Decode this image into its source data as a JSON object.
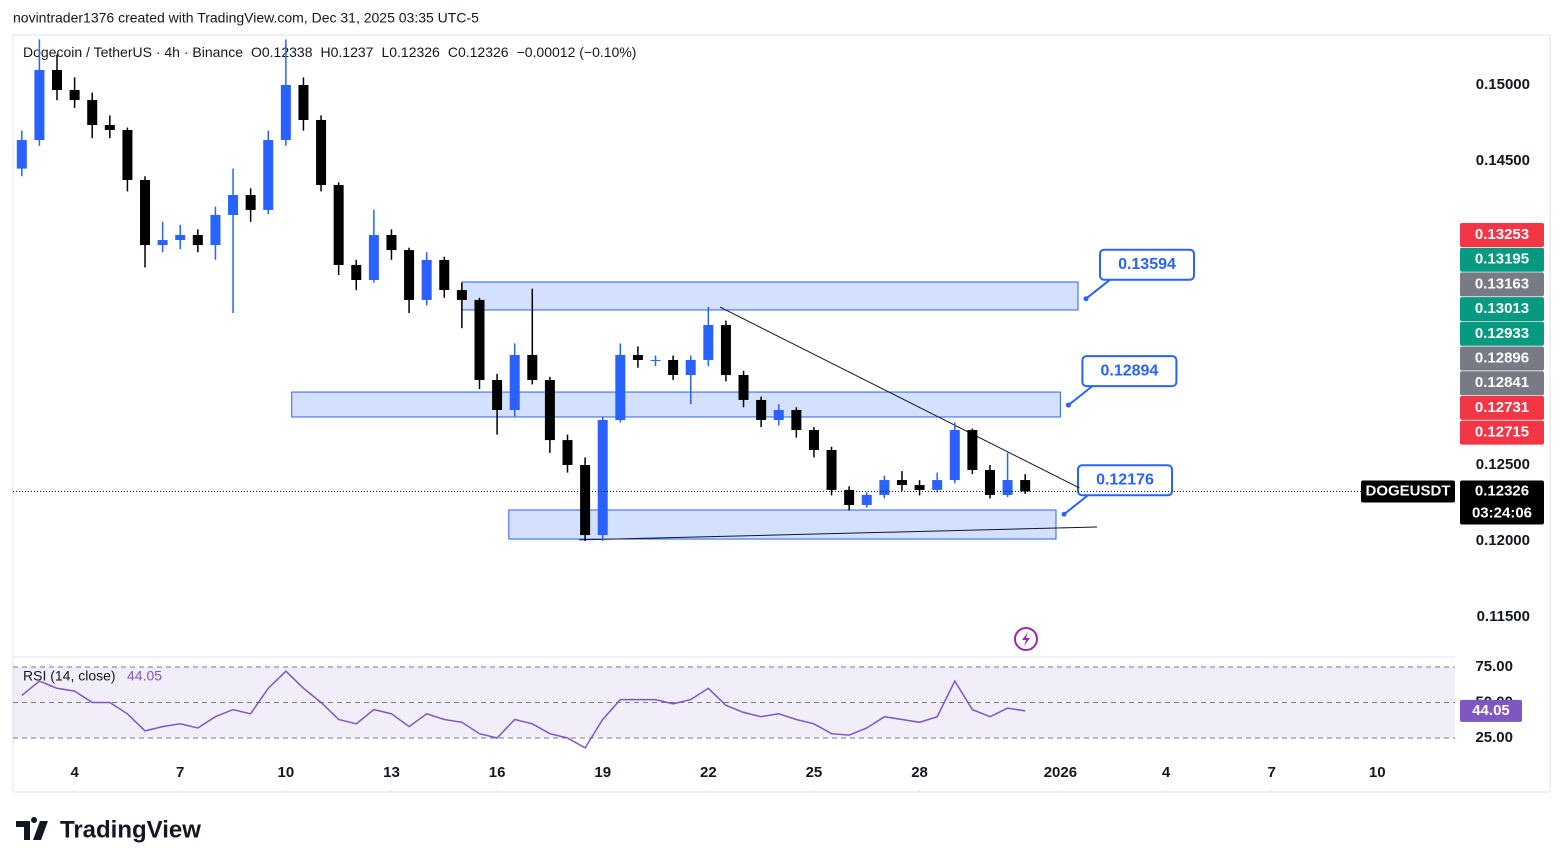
{
  "header": {
    "credit": "novintrader1376 created with TradingView.com, Dec 31, 2025 03:35 UTC-5",
    "brand": "TradingView"
  },
  "chart_data": {
    "type": "candlestick",
    "symbol": "Dogecoin / TetherUS · 4h · Binance",
    "legend_ohlc": [
      {
        "label": "O",
        "value": 0.12338
      },
      {
        "label": "H",
        "value": 0.1237
      },
      {
        "label": "L",
        "value": 0.12326
      },
      {
        "label": "C",
        "value": 0.12326
      }
    ],
    "legend_change": "−0.00012 (−0.10%)",
    "ticker": "DOGEUSDT",
    "countdown": "03:24:06",
    "up_color": "#2962ff",
    "down_color": "#000000",
    "ylim": [
      0.1125,
      0.15329
    ],
    "yticks": [
      {
        "value": 0.115,
        "label": "0.11500"
      },
      {
        "value": 0.12,
        "label": "0.12000"
      },
      {
        "value": 0.125,
        "label": "0.12500"
      },
      {
        "value": 0.145,
        "label": "0.14500"
      },
      {
        "value": 0.15,
        "label": "0.15000"
      }
    ],
    "xlim": [
      "2025-12-02T06:00",
      "2026-01-12T05:00"
    ],
    "xticks": [
      {
        "value": "2025-12-04T00:00",
        "label": "4"
      },
      {
        "value": "2025-12-07T00:00",
        "label": "7"
      },
      {
        "value": "2025-12-10T00:00",
        "label": "10"
      },
      {
        "value": "2025-12-13T00:00",
        "label": "13"
      },
      {
        "value": "2025-12-16T00:00",
        "label": "16"
      },
      {
        "value": "2025-12-19T00:00",
        "label": "19"
      },
      {
        "value": "2025-12-22T00:00",
        "label": "22"
      },
      {
        "value": "2025-12-25T00:00",
        "label": "25"
      },
      {
        "value": "2025-12-28T00:00",
        "label": "28"
      },
      {
        "value": "2026-01-01T00:00",
        "label": "2026"
      },
      {
        "value": "2026-01-04T00:00",
        "label": "4"
      },
      {
        "value": "2026-01-07T00:00",
        "label": "7"
      },
      {
        "value": "2026-01-10T00:00",
        "label": "10"
      }
    ],
    "candles": {
      "x": [
        "2025-12-02T12:00",
        "2025-12-03T00:00",
        "2025-12-03T12:00",
        "2025-12-04T00:00",
        "2025-12-04T12:00",
        "2025-12-05T00:00",
        "2025-12-05T12:00",
        "2025-12-06T00:00",
        "2025-12-06T12:00",
        "2025-12-07T00:00",
        "2025-12-07T12:00",
        "2025-12-08T00:00",
        "2025-12-08T12:00",
        "2025-12-09T00:00",
        "2025-12-09T12:00",
        "2025-12-10T00:00",
        "2025-12-10T12:00",
        "2025-12-11T00:00",
        "2025-12-11T12:00",
        "2025-12-12T00:00",
        "2025-12-12T12:00",
        "2025-12-13T00:00",
        "2025-12-13T12:00",
        "2025-12-14T00:00",
        "2025-12-14T12:00",
        "2025-12-15T00:00",
        "2025-12-15T12:00",
        "2025-12-16T00:00",
        "2025-12-16T12:00",
        "2025-12-17T00:00",
        "2025-12-17T12:00",
        "2025-12-18T00:00",
        "2025-12-18T12:00",
        "2025-12-19T00:00",
        "2025-12-19T12:00",
        "2025-12-20T00:00",
        "2025-12-20T12:00",
        "2025-12-21T00:00",
        "2025-12-21T12:00",
        "2025-12-22T00:00",
        "2025-12-22T12:00",
        "2025-12-23T00:00",
        "2025-12-23T12:00",
        "2025-12-24T00:00",
        "2025-12-24T12:00",
        "2025-12-25T00:00",
        "2025-12-25T12:00",
        "2025-12-26T00:00",
        "2025-12-26T12:00",
        "2025-12-27T00:00",
        "2025-12-27T12:00",
        "2025-12-28T00:00",
        "2025-12-28T12:00",
        "2025-12-29T00:00",
        "2025-12-29T12:00",
        "2025-12-30T00:00",
        "2025-12-30T12:00",
        "2025-12-31T00:00"
      ],
      "open": [
        0.1445,
        0.14638,
        0.15099,
        0.14967,
        0.14901,
        0.14737,
        0.14704,
        0.14375,
        0.13947,
        0.1398,
        0.14013,
        0.13947,
        0.14145,
        0.14276,
        0.14178,
        0.14638,
        0.15,
        0.1477,
        0.14342,
        0.13816,
        0.13717,
        0.14013,
        0.13914,
        0.13586,
        0.13849,
        0.13651,
        0.13586,
        0.13059,
        0.12862,
        0.13224,
        0.13059,
        0.12664,
        0.125,
        0.12039,
        0.12796,
        0.13224,
        0.13191,
        0.13191,
        0.13092,
        0.13191,
        0.13421,
        0.13092,
        0.12928,
        0.12796,
        0.12862,
        0.1273,
        0.12599,
        0.12336,
        0.12237,
        0.12303,
        0.12401,
        0.12368,
        0.12336,
        0.12401,
        0.1273,
        0.12467,
        0.12303,
        0.12401
      ],
      "high": [
        0.147,
        0.153,
        0.152,
        0.1505,
        0.1495,
        0.148,
        0.1472,
        0.144,
        0.141,
        0.1408,
        0.1405,
        0.142,
        0.1445,
        0.1432,
        0.147,
        0.153,
        0.1505,
        0.148,
        0.1436,
        0.1385,
        0.1418,
        0.1405,
        0.1393,
        0.139,
        0.1387,
        0.137,
        0.136,
        0.131,
        0.133,
        0.1366,
        0.1308,
        0.127,
        0.1255,
        0.1282,
        0.133,
        0.1328,
        0.1322,
        0.1322,
        0.1322,
        0.1354,
        0.1345,
        0.1312,
        0.1295,
        0.129,
        0.1288,
        0.1275,
        0.1262,
        0.1236,
        0.1232,
        0.1243,
        0.1246,
        0.124,
        0.1245,
        0.1278,
        0.1274,
        0.125,
        0.1258,
        0.1244
      ],
      "low": [
        0.144,
        0.146,
        0.149,
        0.1485,
        0.1465,
        0.1465,
        0.143,
        0.138,
        0.139,
        0.1392,
        0.139,
        0.1385,
        0.135,
        0.141,
        0.1415,
        0.146,
        0.147,
        0.143,
        0.1375,
        0.1365,
        0.137,
        0.1385,
        0.135,
        0.1355,
        0.136,
        0.134,
        0.13,
        0.127,
        0.1282,
        0.1303,
        0.1258,
        0.1245,
        0.12,
        0.12,
        0.1278,
        0.1314,
        0.1315,
        0.1306,
        0.129,
        0.1315,
        0.1305,
        0.1288,
        0.1275,
        0.1276,
        0.1268,
        0.1255,
        0.123,
        0.122,
        0.1222,
        0.1228,
        0.1233,
        0.123,
        0.1232,
        0.1238,
        0.1244,
        0.1228,
        0.1229,
        0.1231
      ],
      "close": [
        0.14638,
        0.15099,
        0.14967,
        0.14901,
        0.14737,
        0.14704,
        0.14375,
        0.13947,
        0.1398,
        0.14013,
        0.13947,
        0.14145,
        0.14276,
        0.14178,
        0.14638,
        0.15,
        0.1477,
        0.14342,
        0.13816,
        0.13717,
        0.14013,
        0.13914,
        0.13586,
        0.13849,
        0.13651,
        0.13586,
        0.13059,
        0.12862,
        0.13224,
        0.13059,
        0.12664,
        0.125,
        0.12039,
        0.12796,
        0.13224,
        0.13191,
        0.13191,
        0.13092,
        0.13191,
        0.13421,
        0.13092,
        0.12928,
        0.12796,
        0.12862,
        0.1273,
        0.12599,
        0.12336,
        0.12237,
        0.12303,
        0.12401,
        0.12368,
        0.12336,
        0.12401,
        0.1273,
        0.12467,
        0.12303,
        0.12401,
        0.12326
      ]
    },
    "zones": [
      {
        "x": [
          "2025-12-15T00:00",
          "2026-01-01T12:00"
        ],
        "y": [
          0.1352,
          0.13704
        ],
        "label": 0.13594
      },
      {
        "x": [
          "2025-12-10T04:00",
          "2026-01-01T00:00"
        ],
        "y": [
          0.12816,
          0.1298
        ],
        "label": 0.12894
      },
      {
        "x": [
          "2025-12-16T08:00",
          "2025-12-31T21:00"
        ],
        "y": [
          0.12013,
          0.12204
        ],
        "label": 0.12176
      }
    ],
    "trend_lines": [
      {
        "x": [
          "2025-12-22T08:00",
          "2026-01-01T13:00"
        ],
        "y": [
          0.13539,
          0.12349
        ]
      },
      {
        "x": [
          "2025-12-18T08:00",
          "2026-01-02T01:00"
        ],
        "y": [
          0.12007,
          0.12092
        ]
      }
    ],
    "price_tags": [
      {
        "value": 0.13253,
        "color": "#f23645"
      },
      {
        "value": 0.13195,
        "color": "#089981"
      },
      {
        "value": 0.13163,
        "color": "#787b86"
      },
      {
        "value": 0.13013,
        "color": "#089981"
      },
      {
        "value": 0.12933,
        "color": "#089981"
      },
      {
        "value": 0.12896,
        "color": "#787b86"
      },
      {
        "value": 0.12841,
        "color": "#787b86"
      },
      {
        "value": 0.12731,
        "color": "#f23645"
      },
      {
        "value": 0.12715,
        "color": "#f23645"
      }
    ],
    "rsi": {
      "title": "RSI (14, close)",
      "color": "#7e57c2",
      "ylim": [
        11.6,
        82
      ],
      "yticks": [
        {
          "value": 25,
          "label": "25.00"
        },
        {
          "value": 50,
          "label": "50.00"
        },
        {
          "value": 75,
          "label": "75.00"
        }
      ],
      "values": [
        55,
        65,
        60,
        58,
        50,
        50,
        42,
        30,
        33,
        35,
        32,
        40,
        45,
        42,
        60,
        72,
        60,
        50,
        38,
        35,
        45,
        42,
        33,
        42,
        38,
        36,
        28,
        25,
        38,
        35,
        28,
        25,
        18,
        38,
        52,
        52,
        52,
        49,
        52,
        60,
        48,
        43,
        40,
        42,
        38,
        35,
        28,
        27,
        32,
        40,
        38,
        36,
        40,
        65,
        45,
        40,
        46,
        44.05
      ]
    }
  }
}
